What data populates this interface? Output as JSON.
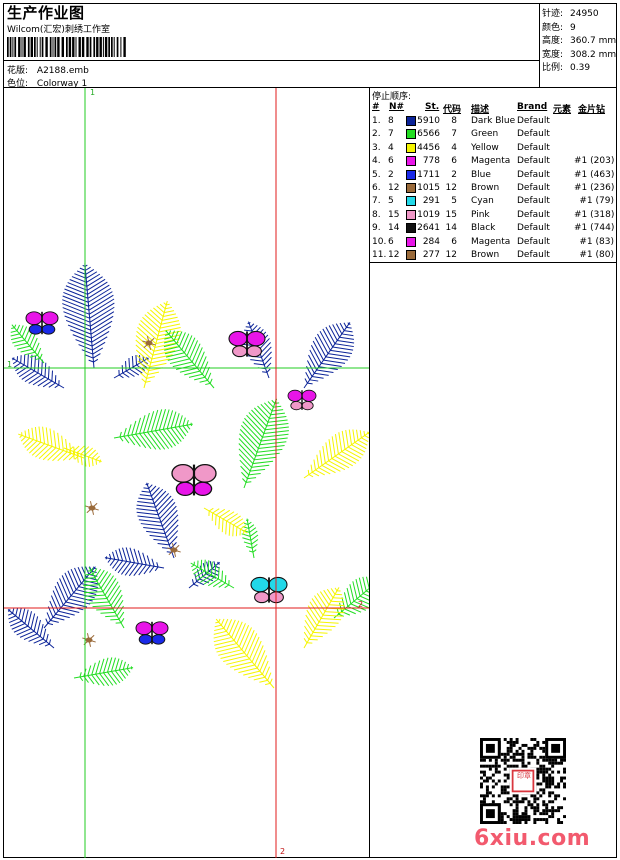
{
  "header": {
    "title": "生产作业图",
    "studio": "Wilcom(汇宏)刺绣工作室",
    "design_label": "花版:",
    "design_file": "A2188.emb",
    "colorway_label": "色位:",
    "colorway": "Colorway 1"
  },
  "stats": [
    {
      "label": "针迹:",
      "value": "24950"
    },
    {
      "label": "颜色:",
      "value": "9"
    },
    {
      "label": "高度:",
      "value": "360.7 mm"
    },
    {
      "label": "宽度:",
      "value": "308.2 mm"
    },
    {
      "label": "比例:",
      "value": "0.39"
    }
  ],
  "stop_sequence": {
    "title": "停止顺序:",
    "headers": {
      "num": "#",
      "needle": "N#",
      "st": "St.",
      "code": "代码",
      "desc": "描述",
      "brand": "Brand",
      "element": "元素",
      "sequin": "金片钻"
    },
    "rows": [
      {
        "num": "1.",
        "needle": "8",
        "color": "#0b2398",
        "st": "5910",
        "code": "8",
        "desc": "Dark Blue",
        "brand": "Default",
        "sequin": ""
      },
      {
        "num": "2.",
        "needle": "7",
        "color": "#22dd22",
        "st": "6566",
        "code": "7",
        "desc": "Green",
        "brand": "Default",
        "sequin": ""
      },
      {
        "num": "3.",
        "needle": "4",
        "color": "#f5f500",
        "st": "4456",
        "code": "4",
        "desc": "Yellow",
        "brand": "Default",
        "sequin": ""
      },
      {
        "num": "4.",
        "needle": "6",
        "color": "#e815e8",
        "st": "778",
        "code": "6",
        "desc": "Magenta",
        "brand": "Default",
        "sequin": "#1 (203)"
      },
      {
        "num": "5.",
        "needle": "2",
        "color": "#1a2ae8",
        "st": "1711",
        "code": "2",
        "desc": "Blue",
        "brand": "Default",
        "sequin": "#1 (463)"
      },
      {
        "num": "6.",
        "needle": "12",
        "color": "#9a6a3a",
        "st": "1015",
        "code": "12",
        "desc": "Brown",
        "brand": "Default",
        "sequin": "#1 (236)"
      },
      {
        "num": "7.",
        "needle": "5",
        "color": "#22d8e8",
        "st": "291",
        "code": "5",
        "desc": "Cyan",
        "brand": "Default",
        "sequin": "#1 (79)"
      },
      {
        "num": "8.",
        "needle": "15",
        "color": "#f098c8",
        "st": "1019",
        "code": "15",
        "desc": "Pink",
        "brand": "Default",
        "sequin": "#1 (318)"
      },
      {
        "num": "9.",
        "needle": "14",
        "color": "#111111",
        "st": "2641",
        "code": "14",
        "desc": "Black",
        "brand": "Default",
        "sequin": "#1 (744)"
      },
      {
        "num": "10.",
        "needle": "6",
        "color": "#e815e8",
        "st": "284",
        "code": "6",
        "desc": "Magenta",
        "brand": "Default",
        "sequin": "#1 (83)"
      },
      {
        "num": "11.",
        "needle": "12",
        "color": "#9a6a3a",
        "st": "277",
        "code": "12",
        "desc": "Brown",
        "brand": "Default",
        "sequin": "#1 (80)"
      }
    ]
  },
  "guides": {
    "mark1": "1",
    "mark2": "2"
  },
  "watermark": "6xiu.com",
  "seal_text": "印章"
}
